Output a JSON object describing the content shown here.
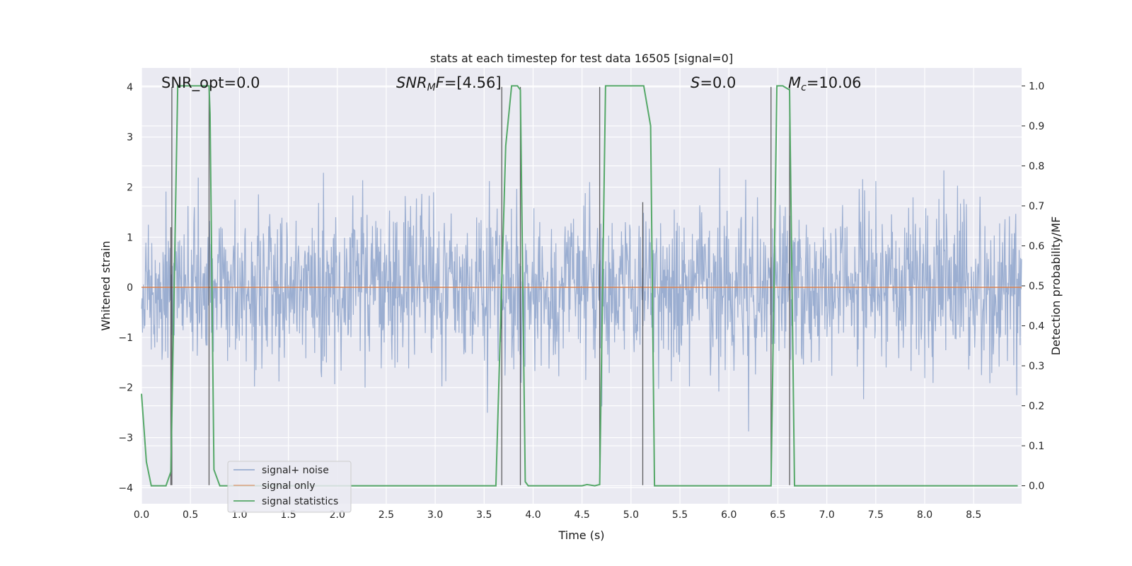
{
  "chart_data": {
    "type": "line",
    "title": "stats at each timestep for test data 16505 [signal=0]",
    "xlabel": "Time (s)",
    "ylabel": "Whitened strain",
    "y2label": "Detection probability/MF",
    "xlim": [
      0.0,
      8.99
    ],
    "ylim": [
      -4.32,
      4.38
    ],
    "y2lim": [
      -0.045,
      1.045
    ],
    "xticks": [
      0.0,
      0.5,
      1.0,
      1.5,
      2.0,
      2.5,
      3.0,
      3.5,
      4.0,
      4.5,
      5.0,
      5.5,
      6.0,
      6.5,
      7.0,
      7.5,
      8.0,
      8.5
    ],
    "xtick_labels": [
      "0.0",
      "0.5",
      "1.0",
      "1.5",
      "2.0",
      "2.5",
      "3.0",
      "3.5",
      "4.0",
      "4.5",
      "5.0",
      "5.5",
      "6.0",
      "6.5",
      "7.0",
      "7.5",
      "8.0",
      "8.5"
    ],
    "yticks": [
      4,
      3,
      2,
      1,
      0,
      -1,
      -2,
      -3,
      -4
    ],
    "ytick_labels": [
      "4",
      "3",
      "2",
      "1",
      "0",
      "−1",
      "−2",
      "−3",
      "−4"
    ],
    "y2ticks": [
      1.0,
      0.9,
      0.8,
      0.7,
      0.6,
      0.5,
      0.4,
      0.3,
      0.2,
      0.1,
      0.0
    ],
    "y2tick_labels": [
      "1.0",
      "0.9",
      "0.8",
      "0.7",
      "0.6",
      "0.5",
      "0.4",
      "0.3",
      "0.2",
      "0.1",
      "0.0"
    ],
    "grid": true,
    "legend_location": "lower-left",
    "series": [
      {
        "name": "signal+ noise",
        "axis": "left",
        "color": "#4c72b0",
        "style": "dense noise trace, approx. Gaussian with std ~0.8, range about -4 to +4",
        "seed": 16505,
        "n_samples": 1800,
        "std": 0.8
      },
      {
        "name": "signal only",
        "axis": "left",
        "color": "#dd8452",
        "x": [
          0.0,
          8.99
        ],
        "y": [
          0.0,
          0.0
        ]
      },
      {
        "name": "signal statistics",
        "axis": "right",
        "color": "#55a868",
        "x": [
          0.0,
          0.05,
          0.1,
          0.25,
          0.3,
          0.37,
          0.4,
          0.5,
          0.6,
          0.69,
          0.7,
          0.74,
          0.8,
          1.0,
          1.5,
          2.0,
          2.5,
          3.0,
          3.5,
          3.62,
          3.72,
          3.78,
          3.84,
          3.87,
          3.92,
          3.95,
          4.0,
          4.5,
          4.55,
          4.63,
          4.68,
          4.74,
          4.8,
          5.0,
          5.13,
          5.2,
          5.24,
          5.4,
          6.0,
          6.43,
          6.49,
          6.55,
          6.62,
          6.67,
          6.8,
          7.5,
          8.0,
          8.5,
          8.95
        ],
        "y": [
          0.23,
          0.06,
          0.0,
          0.0,
          0.035,
          1.0,
          1.0,
          1.0,
          1.0,
          1.0,
          0.93,
          0.04,
          0.0,
          0.0,
          0.0,
          0.0,
          0.0,
          0.0,
          0.0,
          0.0,
          0.85,
          1.0,
          1.0,
          0.99,
          0.01,
          0.0,
          0.0,
          0.0,
          0.003,
          0.0,
          0.003,
          1.0,
          1.0,
          1.0,
          1.0,
          0.9,
          0.0,
          0.0,
          0.0,
          0.0,
          1.0,
          1.0,
          0.99,
          0.0,
          0.0,
          0.0,
          0.0,
          0.0,
          0.0
        ]
      }
    ],
    "vlines": [
      {
        "x": 0.3,
        "ymin": -3.95,
        "ymax": 1.2
      },
      {
        "x": 0.31,
        "ymin": -3.95,
        "ymax": 4.0
      },
      {
        "x": 0.69,
        "ymin": -3.95,
        "ymax": 4.0
      },
      {
        "x": 3.68,
        "ymin": -3.95,
        "ymax": 4.0
      },
      {
        "x": 3.87,
        "ymin": -3.95,
        "ymax": 4.0
      },
      {
        "x": 4.68,
        "ymin": -3.95,
        "ymax": 4.0
      },
      {
        "x": 5.12,
        "ymin": -3.95,
        "ymax": 1.7
      },
      {
        "x": 6.43,
        "ymin": -3.95,
        "ymax": 4.0
      },
      {
        "x": 6.62,
        "ymin": -3.95,
        "ymax": 4.0
      }
    ],
    "annotations": [
      {
        "id": "snr_opt",
        "text": "SNR_opt=0.0",
        "x": 0.2,
        "y": 4.05
      },
      {
        "id": "snr_mf",
        "text": "=[4.56]",
        "base": "SNR",
        "sub": "M",
        "italic_after": "F",
        "x": 2.6,
        "y": 4.05
      },
      {
        "id": "s_stat",
        "text": "=0.0",
        "base": "S",
        "x": 5.6,
        "y": 4.05
      },
      {
        "id": "mc",
        "text": "=10.06",
        "base": "M",
        "sub": "c",
        "x": 6.6,
        "y": 4.05
      }
    ]
  }
}
